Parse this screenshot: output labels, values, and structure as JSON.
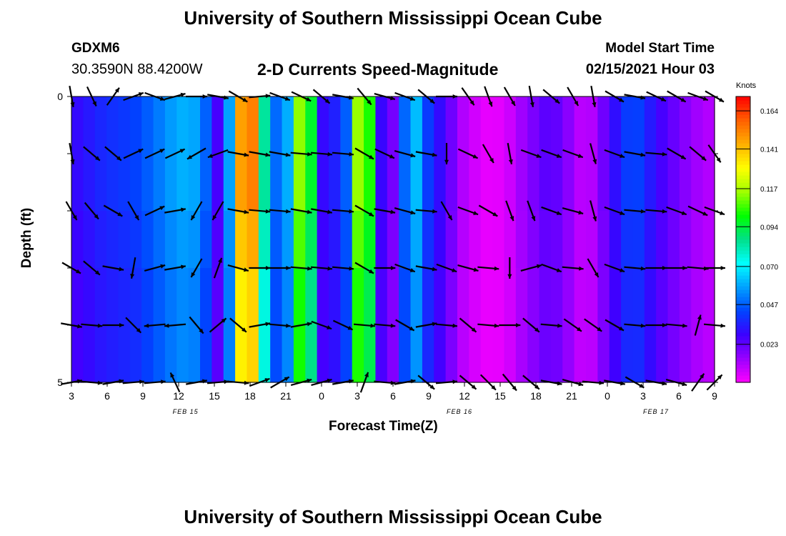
{
  "page_title": "University of Southern Mississippi Ocean Cube",
  "footer_title": "University of Southern Mississippi Ocean Cube",
  "station": {
    "name": "GDXM6",
    "location": "30.3590N 88.4200W"
  },
  "model": {
    "label": "Model Start Time",
    "time": "02/15/2021 Hour 03"
  },
  "chart_data": {
    "type": "heatmap",
    "title": "2-D Currents Speed-Magnitude",
    "xlabel": "Forecast Time(Z)",
    "ylabel": "Depth (ft)",
    "x_ticks": [
      "3",
      "6",
      "9",
      "12",
      "15",
      "18",
      "21",
      "0",
      "3",
      "6",
      "9",
      "12",
      "15",
      "18",
      "21",
      "0",
      "3",
      "6",
      "9"
    ],
    "x_tick_hours": [
      3,
      6,
      9,
      12,
      15,
      18,
      21,
      24,
      27,
      30,
      33,
      36,
      39,
      42,
      45,
      48,
      51,
      54,
      57
    ],
    "xlim": [
      3,
      57
    ],
    "date_labels": [
      {
        "text": "FEB 15",
        "hour": 13
      },
      {
        "text": "FEB 16",
        "hour": 36
      },
      {
        "text": "FEB 17",
        "hour": 52.5
      }
    ],
    "y_ticks": [
      "0",
      "5"
    ],
    "ylim": [
      0,
      5
    ],
    "depth_rows": 5,
    "time_steps": 55,
    "colorbar": {
      "label": "Knots",
      "min": 0.0,
      "max": 0.1727,
      "tick_values": [
        "0.023",
        "0.047",
        "0.070",
        "0.094",
        "0.117",
        "0.141",
        "0.164"
      ],
      "colors": [
        "#ff00ff",
        "#9a00ff",
        "#3c00ff",
        "#0044ff",
        "#00a0ff",
        "#00ffff",
        "#00e08a",
        "#00ff00",
        "#a0ff00",
        "#ffff00",
        "#ffb000",
        "#ff6000",
        "#ff0000"
      ]
    },
    "speed_profile_knots": [
      [
        3,
        0.03
      ],
      [
        4,
        0.032
      ],
      [
        5,
        0.036
      ],
      [
        6,
        0.038
      ],
      [
        7,
        0.04
      ],
      [
        8,
        0.041
      ],
      [
        9,
        0.045
      ],
      [
        10,
        0.05
      ],
      [
        11,
        0.055
      ],
      [
        12,
        0.06
      ],
      [
        13,
        0.06
      ],
      [
        14,
        0.055
      ],
      [
        15,
        0.03
      ],
      [
        16,
        0.02
      ],
      [
        16.5,
        0.095
      ],
      [
        17,
        0.135
      ],
      [
        17.5,
        0.16
      ],
      [
        18,
        0.17
      ],
      [
        18.5,
        0.13
      ],
      [
        19,
        0.09
      ],
      [
        19.5,
        0.075
      ],
      [
        20,
        0.06
      ],
      [
        20.5,
        0.03
      ],
      [
        21,
        0.04
      ],
      [
        21.5,
        0.1
      ],
      [
        22,
        0.115
      ],
      [
        23,
        0.105
      ],
      [
        23.5,
        0.07
      ],
      [
        24,
        0.03
      ],
      [
        25,
        0.035
      ],
      [
        26,
        0.04
      ],
      [
        26.5,
        0.09
      ],
      [
        27,
        0.115
      ],
      [
        28,
        0.105
      ],
      [
        28.5,
        0.075
      ],
      [
        29,
        0.03
      ],
      [
        30,
        0.02
      ],
      [
        30.5,
        0.015
      ],
      [
        31,
        0.05
      ],
      [
        31.5,
        0.085
      ],
      [
        32,
        0.06
      ],
      [
        33,
        0.04
      ],
      [
        34,
        0.03
      ],
      [
        35,
        0.02
      ],
      [
        36,
        0.01
      ],
      [
        37,
        0.006
      ],
      [
        38,
        0.003
      ],
      [
        39,
        0.004
      ],
      [
        40,
        0.008
      ],
      [
        41,
        0.015
      ],
      [
        42,
        0.02
      ],
      [
        43,
        0.025
      ],
      [
        44,
        0.022
      ],
      [
        45,
        0.015
      ],
      [
        46,
        0.008
      ],
      [
        47,
        0.012
      ],
      [
        48,
        0.025
      ],
      [
        49,
        0.035
      ],
      [
        50,
        0.045
      ],
      [
        51,
        0.04
      ],
      [
        52,
        0.03
      ],
      [
        53,
        0.025
      ],
      [
        54,
        0.02
      ],
      [
        55,
        0.015
      ],
      [
        56,
        0.012
      ],
      [
        57,
        0.01
      ]
    ],
    "depth_speed_factors": [
      1.0,
      1.0,
      0.95,
      0.9,
      0.9
    ],
    "vector_columns_hours": [
      3,
      4.7,
      6.5,
      8.2,
      10,
      11.7,
      13.5,
      15.3,
      17,
      18.8,
      20.5,
      22.3,
      24,
      25.8,
      27.6,
      29.3,
      31,
      32.8,
      34.5,
      36.3,
      38,
      39.8,
      41.6,
      43.3,
      45.1,
      46.8,
      48.6,
      50.3,
      52.1,
      53.8,
      55.6,
      57
    ],
    "vectors_deg": [
      [
        -80,
        -65,
        55,
        20,
        -20,
        15,
        0,
        -10,
        -30,
        5,
        -20,
        -25,
        -40,
        -10,
        -50,
        -15,
        -20,
        -40,
        0,
        -55,
        -70,
        -60,
        -80,
        -40,
        -60,
        -80,
        -30,
        -10,
        -25,
        -30,
        -20,
        -30
      ],
      [
        -80,
        -40,
        -40,
        25,
        25,
        25,
        -150,
        -160,
        -10,
        -10,
        -10,
        -5,
        -5,
        -5,
        -30,
        -25,
        -15,
        -10,
        -90,
        -25,
        -60,
        -80,
        -20,
        -20,
        -20,
        -75,
        -20,
        -10,
        -5,
        -30,
        -40,
        -55
      ],
      [
        -60,
        -50,
        -30,
        -60,
        25,
        10,
        -120,
        -120,
        -10,
        -5,
        -5,
        -10,
        -10,
        -5,
        -30,
        -10,
        -15,
        -5,
        -60,
        -20,
        -30,
        -70,
        -70,
        -20,
        -15,
        -75,
        -20,
        -5,
        -5,
        -20,
        -25,
        -20
      ],
      [
        -30,
        -40,
        -10,
        -100,
        15,
        10,
        -120,
        70,
        -15,
        0,
        0,
        -5,
        -5,
        -5,
        -30,
        0,
        -20,
        -10,
        -20,
        -15,
        -5,
        -90,
        15,
        -20,
        -5,
        -60,
        -20,
        -5,
        0,
        0,
        -5,
        0
      ],
      [
        -10,
        -5,
        0,
        -45,
        -175,
        -175,
        -50,
        40,
        -40,
        10,
        -5,
        10,
        -20,
        -25,
        -5,
        -5,
        -30,
        10,
        -5,
        -40,
        -5,
        0,
        -40,
        -5,
        -35,
        -35,
        -30,
        -5,
        0,
        -5,
        75,
        -5
      ],
      [
        10,
        -5,
        10,
        5,
        5,
        115,
        10,
        5,
        -5,
        20,
        30,
        15,
        15,
        10,
        70,
        -5,
        10,
        -40,
        5,
        -40,
        -45,
        -50,
        -40,
        -10,
        -15,
        -5,
        -10,
        -30,
        -10,
        -15,
        55,
        45
      ]
    ]
  }
}
